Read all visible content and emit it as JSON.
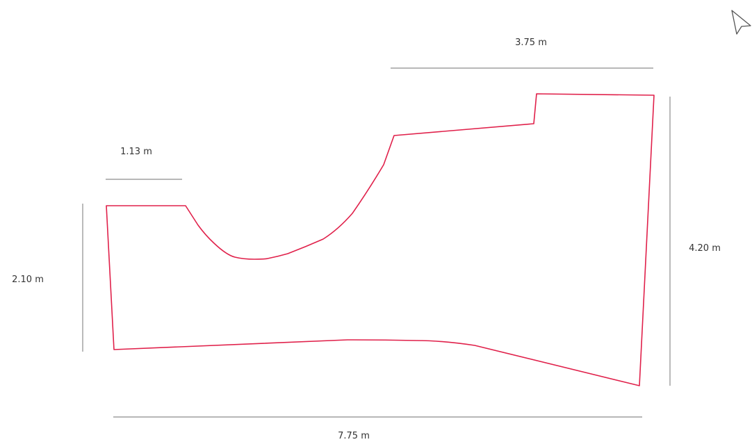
{
  "diagram": {
    "outline_color": "#e0204a",
    "dimension_line_color": "#8c8c8c",
    "dimensions": {
      "top_right_width": "3.75 m",
      "top_left_width": "1.13 m",
      "left_height": "2.10 m",
      "right_height": "4.20 m",
      "bottom_width": "7.75 m"
    }
  },
  "cursor": {
    "icon": "arrow-pointer-icon"
  }
}
